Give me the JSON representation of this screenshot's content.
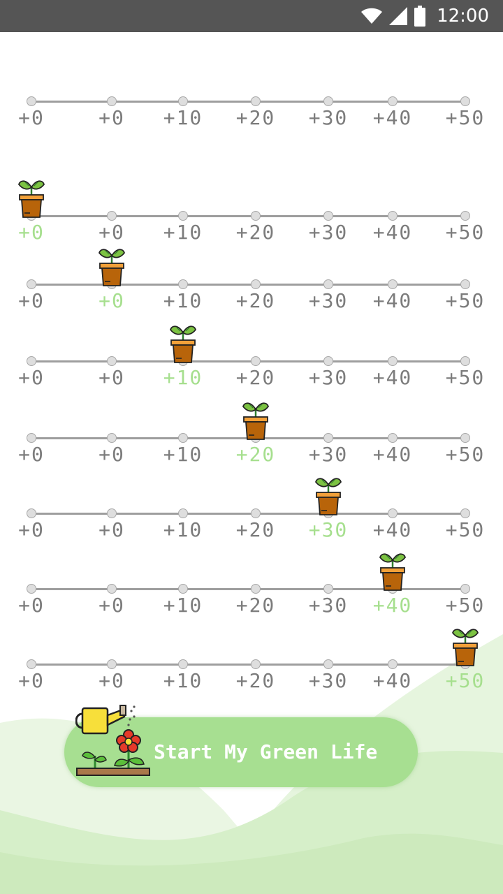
{
  "status_bar": {
    "time": "12:00",
    "icons": [
      "wifi-icon",
      "cell-signal-icon",
      "battery-icon"
    ]
  },
  "progress_rows": [
    {
      "ticks": [
        "+0",
        "+0",
        "+10",
        "+20",
        "+30",
        "+40",
        "+50"
      ],
      "active_index": null
    },
    {
      "ticks": [
        "+0",
        "+0",
        "+10",
        "+20",
        "+30",
        "+40",
        "+50"
      ],
      "active_index": 0
    },
    {
      "ticks": [
        "+0",
        "+0",
        "+10",
        "+20",
        "+30",
        "+40",
        "+50"
      ],
      "active_index": 1
    },
    {
      "ticks": [
        "+0",
        "+0",
        "+10",
        "+20",
        "+30",
        "+40",
        "+50"
      ],
      "active_index": 2
    },
    {
      "ticks": [
        "+0",
        "+0",
        "+10",
        "+20",
        "+30",
        "+40",
        "+50"
      ],
      "active_index": 3
    },
    {
      "ticks": [
        "+0",
        "+0",
        "+10",
        "+20",
        "+30",
        "+40",
        "+50"
      ],
      "active_index": 4
    },
    {
      "ticks": [
        "+0",
        "+0",
        "+10",
        "+20",
        "+30",
        "+40",
        "+50"
      ],
      "active_index": 5
    },
    {
      "ticks": [
        "+0",
        "+0",
        "+10",
        "+20",
        "+30",
        "+40",
        "+50"
      ],
      "active_index": 6
    }
  ],
  "colors": {
    "accent_green": "#a6df8e",
    "tick_gray": "#7c7c7c",
    "status_bar": "#555555",
    "pot": "#b8640a"
  },
  "cta": {
    "label": "Start My Green Life",
    "icon": "watering-can-flower-icon"
  }
}
